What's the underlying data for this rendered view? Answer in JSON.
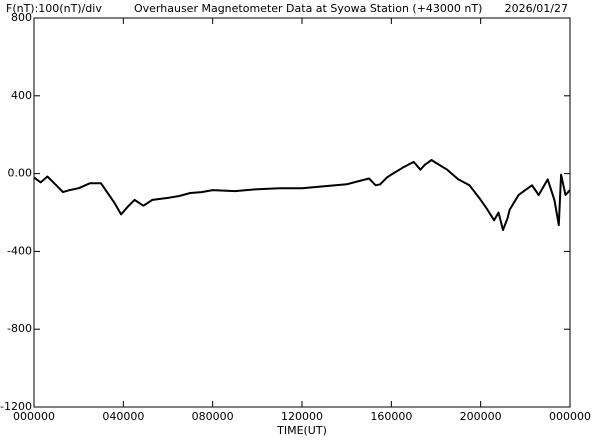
{
  "chart_data": {
    "type": "line",
    "title": "Overhauser Magnetometer Data at Syowa Station (+43000 nT)",
    "scale_label": "F(nT):100(nT)/div",
    "date": "2026/01/27",
    "x_label": "TIME(UT)",
    "xlim": [
      0,
      24
    ],
    "xticks": [
      {
        "value": 0,
        "label": "000000"
      },
      {
        "value": 4,
        "label": "040000"
      },
      {
        "value": 8,
        "label": "080000"
      },
      {
        "value": 12,
        "label": "120000"
      },
      {
        "value": 16,
        "label": "160000"
      },
      {
        "value": 20,
        "label": "200000"
      },
      {
        "value": 24,
        "label": "000000"
      }
    ],
    "ylim": [
      -1200,
      800
    ],
    "yticks": [
      -1200,
      -800,
      -400,
      {
        "value": 0,
        "label": "0.00"
      },
      400,
      800
    ],
    "color": "#000000",
    "x": [
      0,
      0.3,
      0.6,
      1.0,
      1.3,
      1.6,
      2.0,
      2.5,
      3.0,
      3.3,
      3.6,
      3.9,
      4.2,
      4.5,
      4.9,
      5.3,
      6.0,
      6.5,
      7.0,
      7.5,
      8.0,
      9.0,
      10.0,
      11.0,
      12.0,
      13.0,
      14.0,
      14.5,
      15.0,
      15.3,
      15.5,
      15.8,
      16.0,
      16.5,
      17.0,
      17.3,
      17.5,
      17.8,
      18.0,
      18.5,
      19.0,
      19.5,
      20.0,
      20.3,
      20.6,
      20.8,
      21.0,
      21.2,
      21.3,
      21.7,
      22.0,
      22.3,
      22.6,
      23.0,
      23.3,
      23.5,
      23.6,
      23.8,
      24.0
    ],
    "values": [
      -20,
      -45,
      -15,
      -60,
      -95,
      -85,
      -75,
      -50,
      -50,
      -100,
      -150,
      -210,
      -170,
      -135,
      -165,
      -135,
      -125,
      -115,
      -100,
      -95,
      -85,
      -90,
      -80,
      -75,
      -75,
      -65,
      -55,
      -40,
      -25,
      -60,
      -55,
      -20,
      -5,
      30,
      60,
      20,
      45,
      70,
      55,
      20,
      -30,
      -60,
      -135,
      -185,
      -240,
      -200,
      -290,
      -230,
      -185,
      -110,
      -85,
      -60,
      -110,
      -30,
      -135,
      -265,
      -5,
      -110,
      -85
    ]
  }
}
